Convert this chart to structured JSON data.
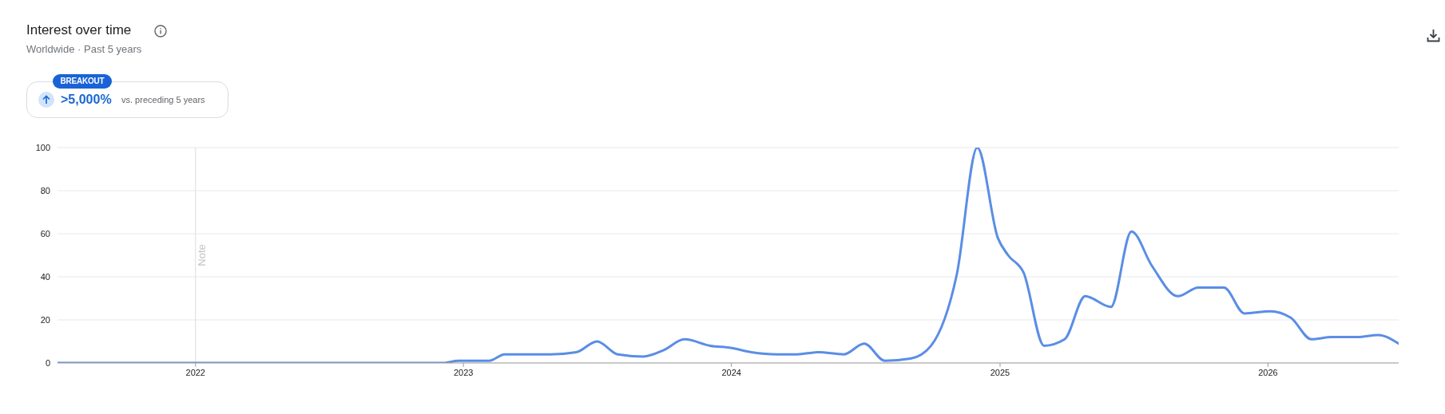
{
  "chart_data": {
    "type": "line",
    "title": "Interest over time",
    "subtitle": "Worldwide · Past 5 years",
    "annotations": [
      "BREAKOUT",
      ">5,000%",
      "vs. preceding 5 years"
    ],
    "x": [
      "2021-06-27",
      "2022-12-04",
      "2022-12-25",
      "2023-02-05",
      "2023-02-26",
      "2023-04-30",
      "2023-06-04",
      "2023-07-02",
      "2023-07-30",
      "2023-09-03",
      "2023-10-01",
      "2023-10-29",
      "2023-12-03",
      "2023-12-31",
      "2024-01-28",
      "2024-03-03",
      "2024-03-31",
      "2024-04-28",
      "2024-06-02",
      "2024-06-30",
      "2024-07-28",
      "2024-09-01",
      "2024-09-29",
      "2024-11-03",
      "2024-12-01",
      "2024-12-29",
      "2025-01-12",
      "2025-02-02",
      "2025-03-02",
      "2025-03-30",
      "2025-04-27",
      "2025-06-01",
      "2025-06-29",
      "2025-07-27",
      "2025-08-31",
      "2025-09-28",
      "2025-11-02",
      "2025-11-30",
      "2026-01-04",
      "2026-02-01",
      "2026-03-01",
      "2026-03-29",
      "2026-05-03",
      "2026-05-31",
      "2026-06-28"
    ],
    "values": [
      0,
      0,
      1,
      1,
      4,
      4,
      5,
      10,
      4,
      3,
      6,
      11,
      8,
      7,
      5,
      4,
      4,
      5,
      4,
      9,
      1,
      2,
      8,
      41,
      100,
      58,
      50,
      42,
      8,
      11,
      31,
      26,
      61,
      45,
      31,
      35,
      35,
      23,
      24,
      21,
      11,
      12,
      12,
      13,
      9
    ],
    "color": "#5a8de6",
    "xlim": [
      "2021-06-27",
      "2026-06-28"
    ],
    "xticks": [
      "2022",
      "2023",
      "2024",
      "2025",
      "2026"
    ],
    "ylim": [
      0,
      100
    ],
    "yticks": [
      0,
      20,
      40,
      60,
      80,
      100
    ],
    "grid": "y",
    "marker": "none",
    "line_style": "solid",
    "ref_lines": [
      {
        "axis": "x",
        "value": "2022-01-01",
        "label": "Note",
        "color": "#dadce0"
      }
    ]
  }
}
